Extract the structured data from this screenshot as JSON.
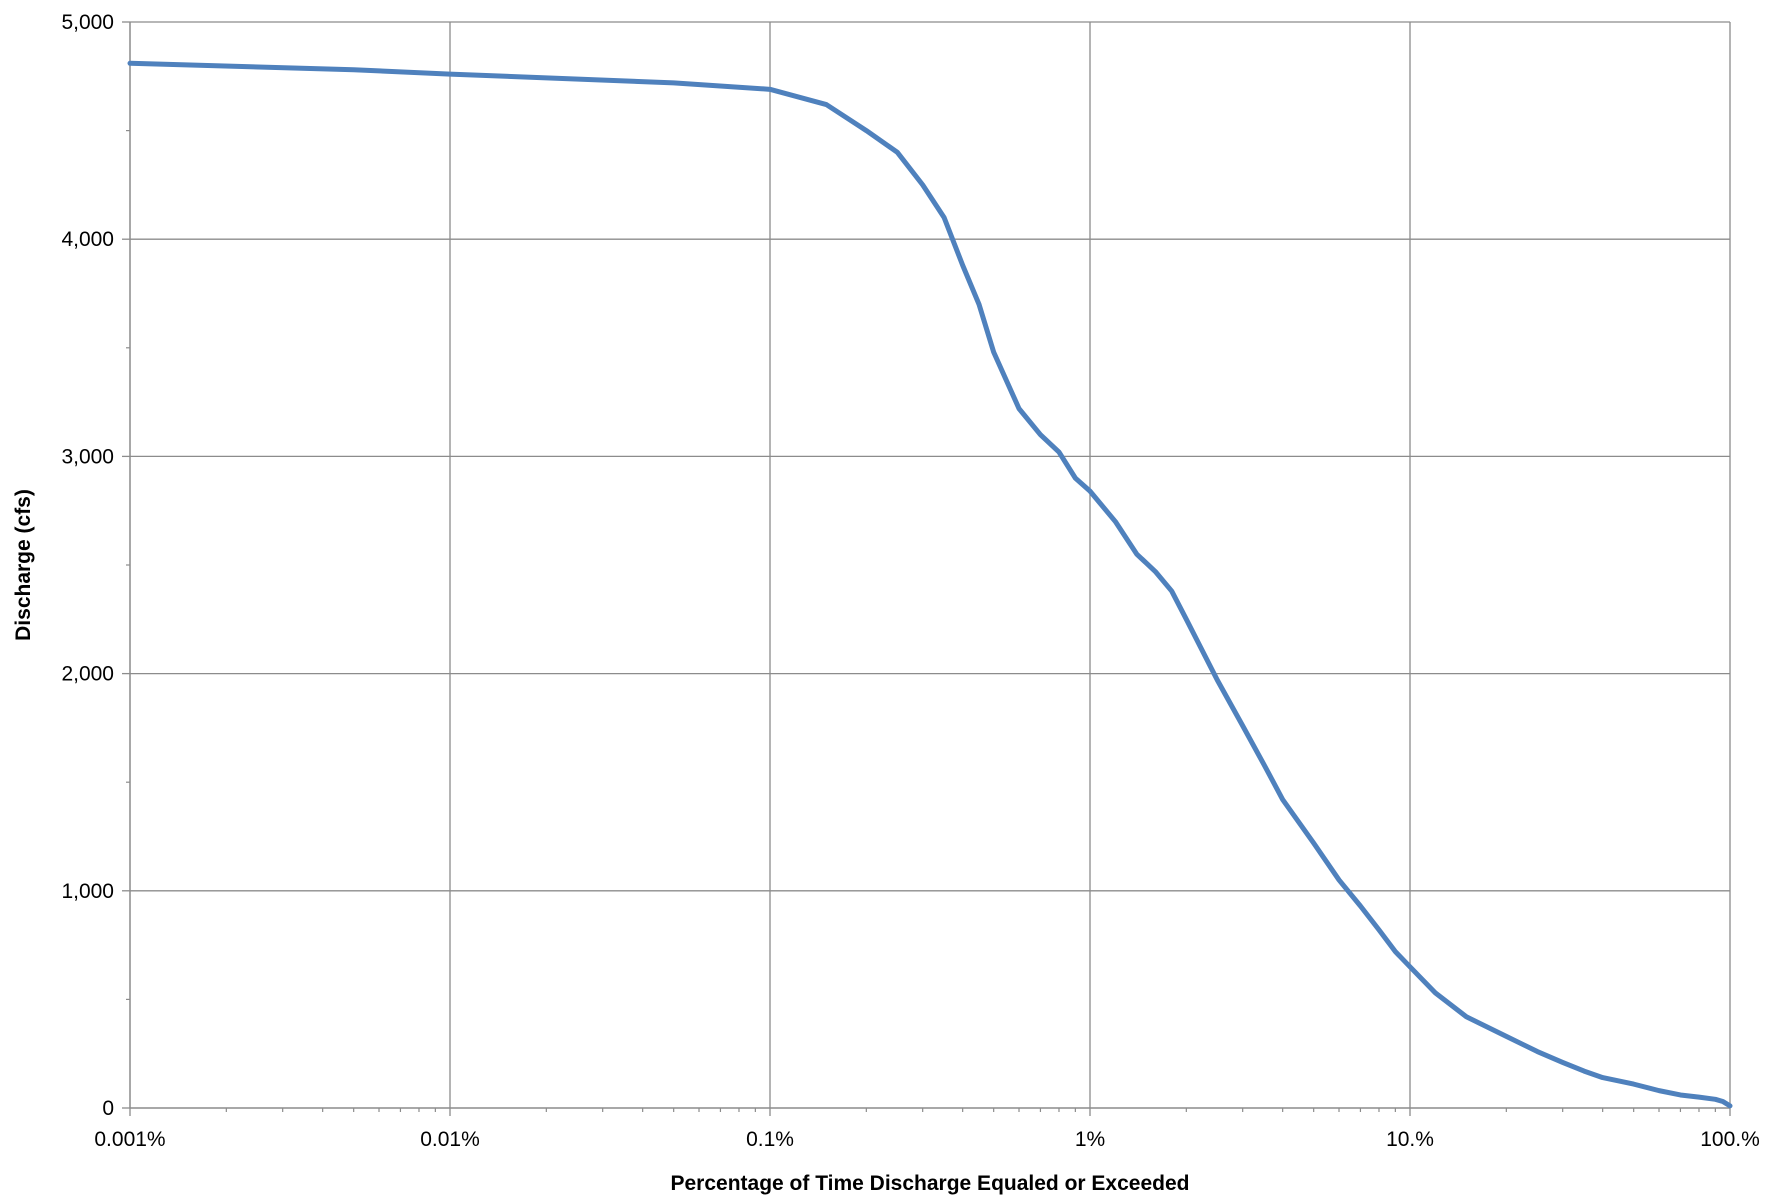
{
  "chart_data": {
    "type": "line",
    "title": "",
    "xlabel": "Percentage of Time Discharge Equaled or Exceeded",
    "ylabel": "Discharge (cfs)",
    "x_scale": "log",
    "xlim": [
      0.001,
      100
    ],
    "ylim": [
      0,
      5000
    ],
    "x_ticks": [
      0.001,
      0.01,
      0.1,
      1,
      10,
      100
    ],
    "x_tick_labels": [
      "0.001%",
      "0.01%",
      "0.1%",
      "1%",
      "10.%",
      "100.%"
    ],
    "y_ticks": [
      0,
      1000,
      2000,
      3000,
      4000,
      5000
    ],
    "y_tick_labels": [
      "0",
      "1,000",
      "2,000",
      "3,000",
      "4,000",
      "5,000"
    ],
    "y_minor_tick_step": 500,
    "grid": true,
    "legend": "none",
    "series": [
      {
        "color": "#4f81bd",
        "x": [
          0.001,
          0.005,
          0.01,
          0.05,
          0.1,
          0.15,
          0.2,
          0.25,
          0.3,
          0.35,
          0.4,
          0.45,
          0.5,
          0.6,
          0.7,
          0.8,
          0.9,
          1,
          1.2,
          1.4,
          1.6,
          1.8,
          2,
          2.5,
          3,
          3.5,
          4,
          5,
          6,
          7,
          8,
          9,
          10,
          12,
          15,
          20,
          25,
          30,
          35,
          40,
          50,
          60,
          70,
          80,
          90,
          95,
          100
        ],
        "y": [
          4810,
          4780,
          4760,
          4720,
          4690,
          4620,
          4500,
          4400,
          4250,
          4100,
          3880,
          3700,
          3480,
          3220,
          3100,
          3020,
          2900,
          2840,
          2700,
          2550,
          2470,
          2380,
          2250,
          1970,
          1760,
          1580,
          1420,
          1220,
          1050,
          930,
          820,
          720,
          650,
          530,
          420,
          330,
          260,
          210,
          170,
          140,
          110,
          80,
          60,
          50,
          40,
          30,
          10
        ]
      }
    ]
  }
}
